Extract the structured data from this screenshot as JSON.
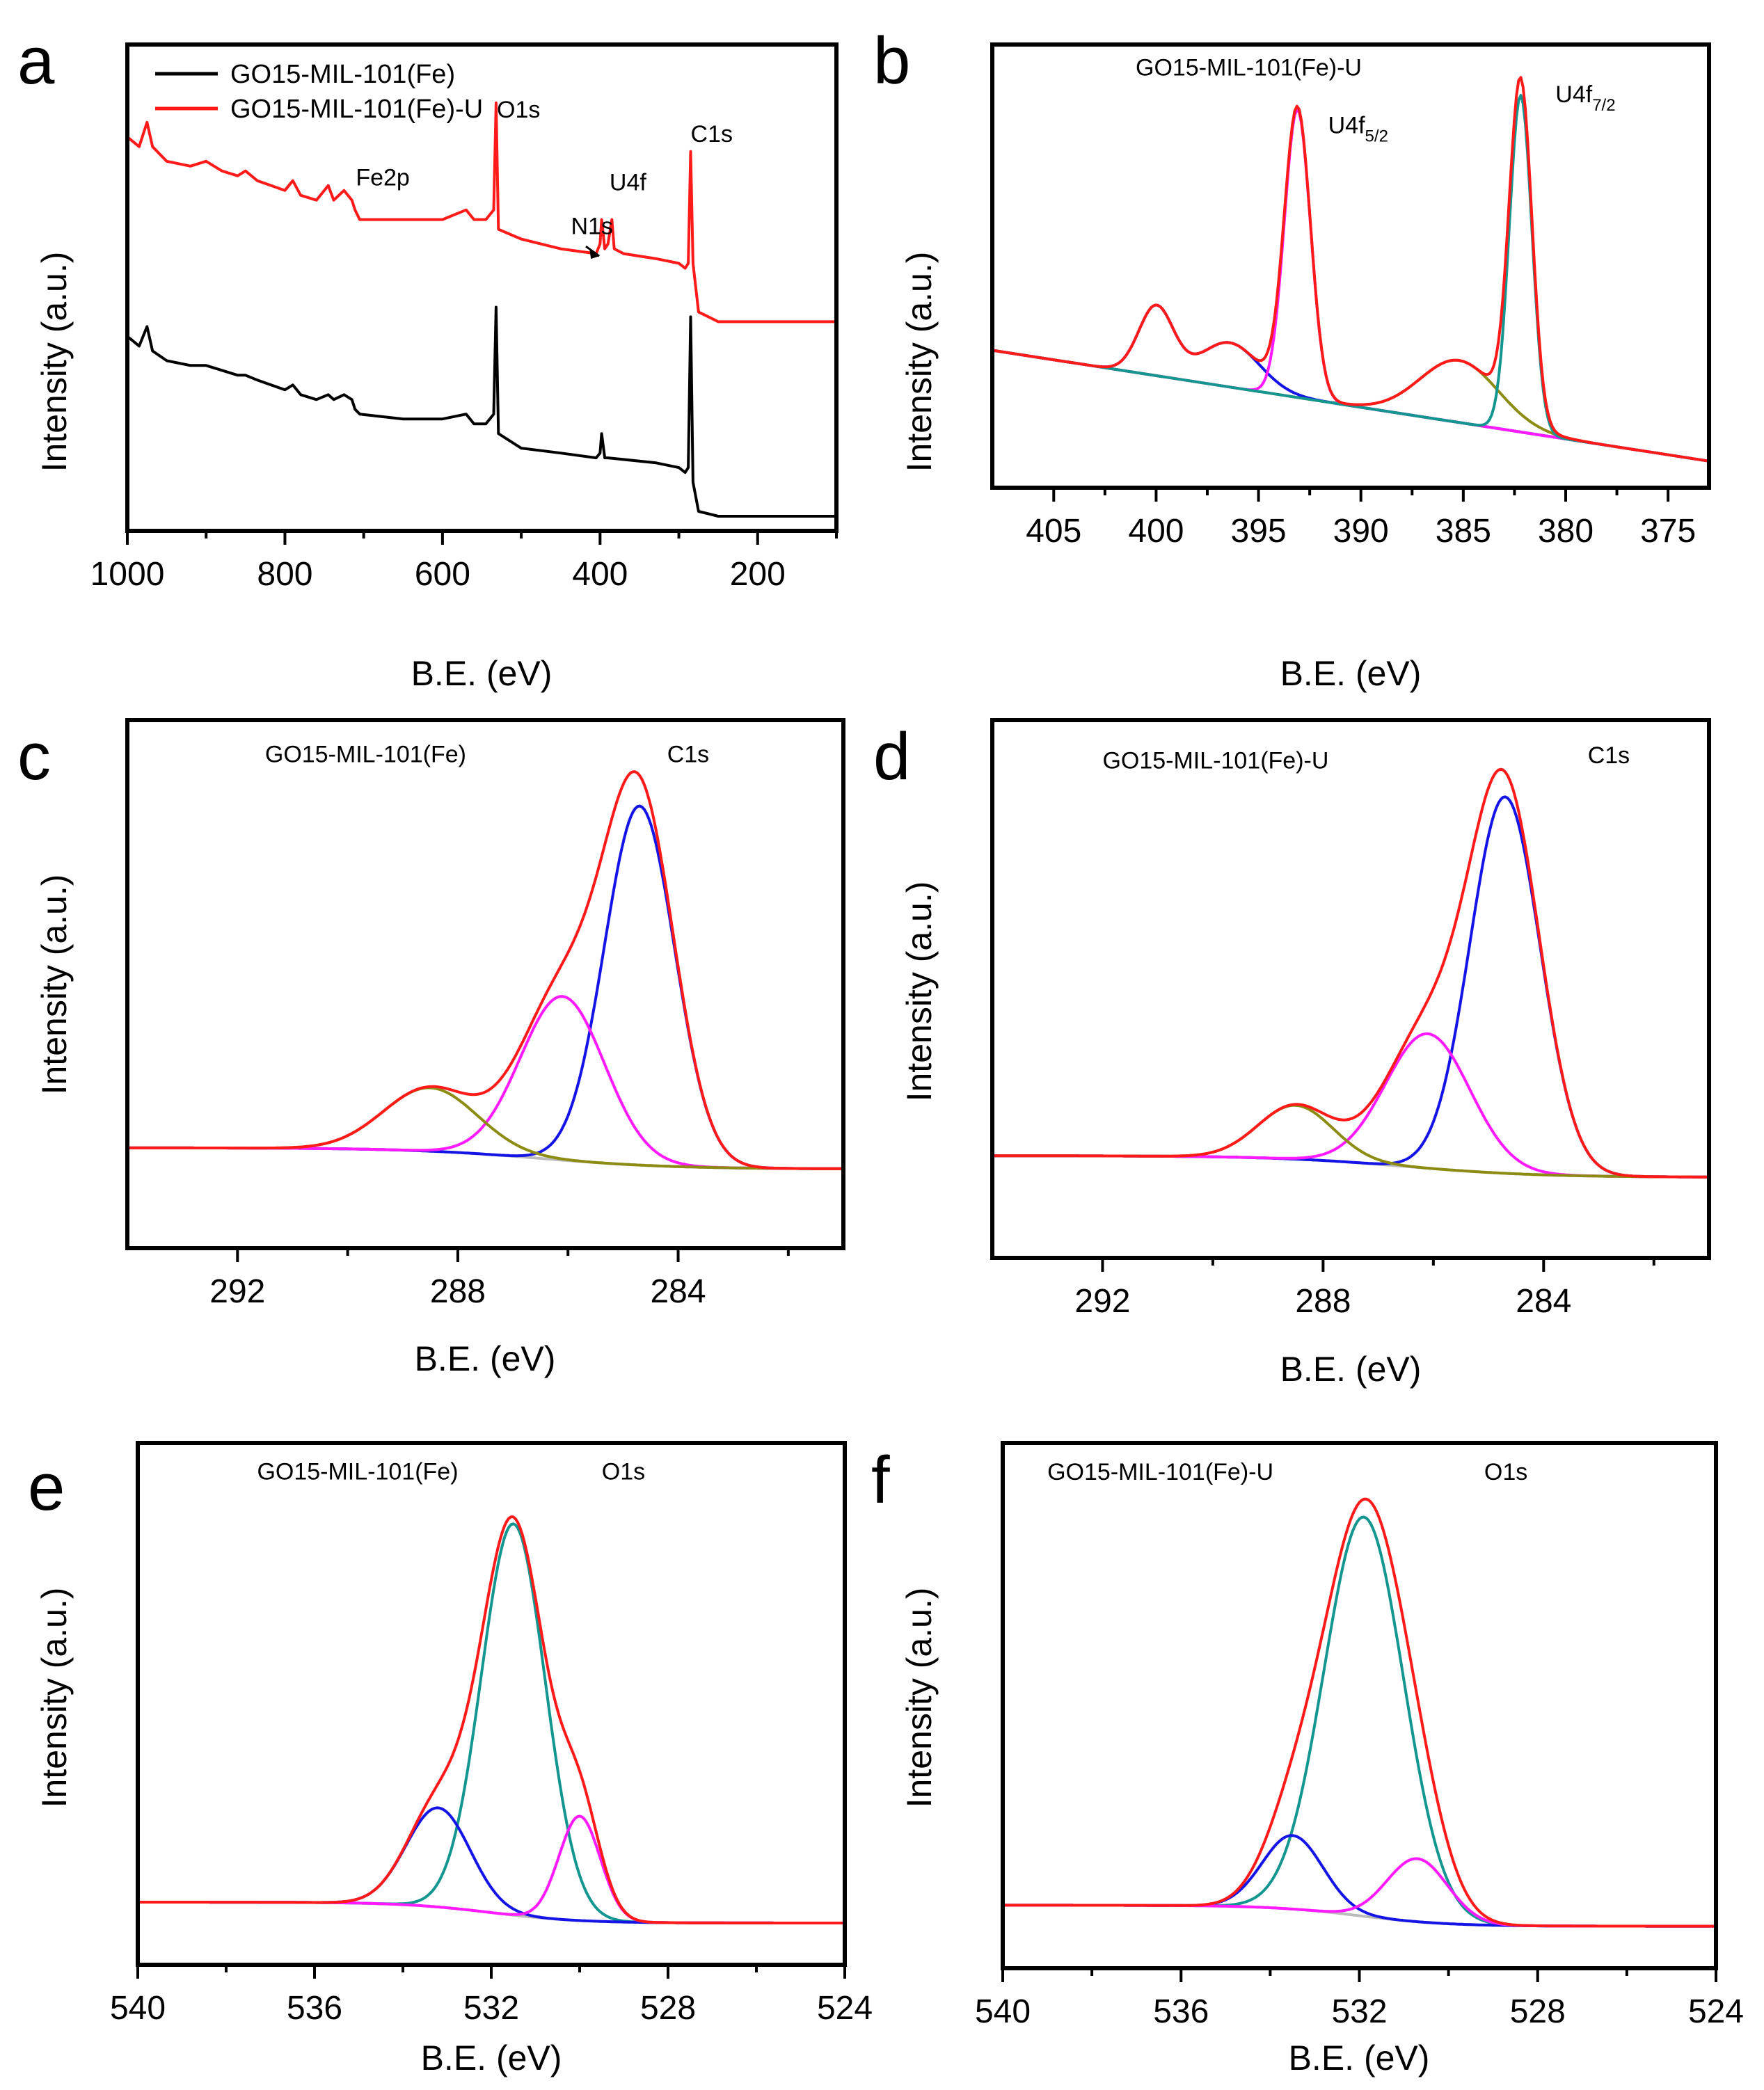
{
  "figure": {
    "background": "#ffffff"
  },
  "colors": {
    "black": "#000000",
    "red": "#ff1a1a",
    "blue": "#1414e6",
    "magenta": "#ff1aff",
    "teal": "#149690",
    "olive": "#8c8c14",
    "gray": "#bbbbbb"
  },
  "chart_data": [
    {
      "id": "a",
      "type": "line",
      "panel_label": "a",
      "xlabel": "B.E. (eV)",
      "ylabel": "Intensity (a.u.)",
      "xlim": [
        1000,
        100
      ],
      "ylim": [
        0,
        100
      ],
      "xticks": [
        1000,
        800,
        600,
        400,
        200
      ],
      "xtick_labels": [
        "1000",
        "800",
        "600",
        "400",
        "200"
      ],
      "minor_xticks": [
        900,
        700,
        500,
        300,
        100
      ],
      "legend": {
        "position": "top-left",
        "entries": [
          {
            "label": "GO15-MIL-101(Fe)",
            "color": "black"
          },
          {
            "label": "GO15-MIL-101(Fe)-U",
            "color": "red"
          }
        ]
      },
      "annotations": [
        {
          "text": "Fe2p",
          "x": 710,
          "y": 71
        },
        {
          "text": "O1s",
          "x": 531,
          "y": 85
        },
        {
          "text": "U4f",
          "x": 388,
          "y": 70
        },
        {
          "text": "N1s",
          "x": 437,
          "y": 61
        },
        {
          "text": "C1s",
          "x": 285,
          "y": 80
        }
      ],
      "series": [
        {
          "name": "GO15-MIL-101(Fe)-U",
          "color": "red",
          "width": 5,
          "points": [
            [
              1000,
              81
            ],
            [
              985,
              79
            ],
            [
              975,
              84
            ],
            [
              968,
              79
            ],
            [
              950,
              76
            ],
            [
              920,
              75
            ],
            [
              900,
              76
            ],
            [
              880,
              74
            ],
            [
              860,
              73
            ],
            [
              850,
              74
            ],
            [
              835,
              72
            ],
            [
              800,
              70
            ],
            [
              790,
              72
            ],
            [
              780,
              69
            ],
            [
              760,
              68
            ],
            [
              745,
              71
            ],
            [
              738,
              68
            ],
            [
              725,
              70
            ],
            [
              715,
              68
            ],
            [
              711,
              66
            ],
            [
              705,
              64
            ],
            [
              650,
              64
            ],
            [
              600,
              64
            ],
            [
              570,
              66
            ],
            [
              560,
              64
            ],
            [
              545,
              64
            ],
            [
              535,
              66
            ],
            [
              532,
              88
            ],
            [
              529,
              62
            ],
            [
              500,
              60
            ],
            [
              450,
              58
            ],
            [
              405,
              57
            ],
            [
              400,
              59
            ],
            [
              398,
              64
            ],
            [
              394,
              58
            ],
            [
              390,
              59
            ],
            [
              385,
              64
            ],
            [
              382,
              58
            ],
            [
              370,
              57
            ],
            [
              330,
              56
            ],
            [
              300,
              55
            ],
            [
              292,
              54
            ],
            [
              288,
              55
            ],
            [
              285,
              78
            ],
            [
              282,
              55
            ],
            [
              275,
              45
            ],
            [
              250,
              43
            ],
            [
              200,
              43
            ],
            [
              150,
              43
            ],
            [
              100,
              43
            ]
          ]
        },
        {
          "name": "GO15-MIL-101(Fe)",
          "color": "black",
          "width": 5,
          "points": [
            [
              1000,
              40
            ],
            [
              985,
              38
            ],
            [
              975,
              42
            ],
            [
              968,
              37
            ],
            [
              950,
              35
            ],
            [
              920,
              34
            ],
            [
              900,
              34
            ],
            [
              880,
              33
            ],
            [
              860,
              32
            ],
            [
              850,
              32
            ],
            [
              835,
              31
            ],
            [
              800,
              29
            ],
            [
              790,
              30
            ],
            [
              780,
              28
            ],
            [
              760,
              27
            ],
            [
              745,
              28
            ],
            [
              738,
              27
            ],
            [
              725,
              28
            ],
            [
              715,
              27
            ],
            [
              711,
              25
            ],
            [
              705,
              24
            ],
            [
              650,
              23
            ],
            [
              600,
              23
            ],
            [
              570,
              24
            ],
            [
              560,
              22
            ],
            [
              545,
              22
            ],
            [
              535,
              24
            ],
            [
              532,
              46
            ],
            [
              529,
              20
            ],
            [
              500,
              17
            ],
            [
              450,
              16
            ],
            [
              405,
              15
            ],
            [
              400,
              16
            ],
            [
              398,
              20
            ],
            [
              394,
              15
            ],
            [
              390,
              15
            ],
            [
              330,
              14
            ],
            [
              300,
              13
            ],
            [
              292,
              12
            ],
            [
              288,
              13
            ],
            [
              285,
              44
            ],
            [
              282,
              10
            ],
            [
              275,
              4
            ],
            [
              250,
              3
            ],
            [
              200,
              3
            ],
            [
              150,
              3
            ],
            [
              100,
              3
            ]
          ]
        }
      ]
    },
    {
      "id": "b",
      "type": "line",
      "panel_label": "b",
      "xlabel": "B.E. (eV)",
      "ylabel": "Intensity (a.u.)",
      "xlim": [
        408,
        373
      ],
      "ylim": [
        0,
        100
      ],
      "xticks": [
        405,
        400,
        395,
        390,
        385,
        380,
        375
      ],
      "xtick_labels": [
        "405",
        "400",
        "395",
        "390",
        "385",
        "380",
        "375"
      ],
      "minor_xticks": [
        402.5,
        397.5,
        392.5,
        387.5,
        382.5,
        377.5
      ],
      "annotations": [
        {
          "text": "GO15-MIL-101(Fe)-U",
          "x": 401,
          "y": 93
        },
        {
          "text": "U4f5/2",
          "main": "U4f",
          "sub": "5/2",
          "x": 391.6,
          "y": 80
        },
        {
          "text": "U4f7/2",
          "main": "U4f",
          "sub": "7/2",
          "x": 380.5,
          "y": 87
        }
      ],
      "baseline": {
        "type": "linear",
        "x": [
          408,
          373
        ],
        "y": [
          31,
          6
        ]
      },
      "components": [
        {
          "color": "gray",
          "width": 4,
          "shirley": true,
          "peaks": []
        },
        {
          "color": "olive",
          "width": 4,
          "peaks": [
            {
              "center": 385.2,
              "height": 14,
              "fwhm": 4.5
            }
          ]
        },
        {
          "color": "blue",
          "width": 4,
          "peaks": [
            {
              "center": 400.0,
              "height": 15.5,
              "fwhm": 2.0
            },
            {
              "center": 396.4,
              "height": 10,
              "fwhm": 3.4
            }
          ]
        },
        {
          "color": "magenta",
          "width": 4,
          "peaks": [
            {
              "center": 393.1,
              "height": 65,
              "fwhm": 1.5
            }
          ]
        },
        {
          "color": "teal",
          "width": 4,
          "peaks": [
            {
              "center": 382.2,
              "height": 76,
              "fwhm": 1.3
            }
          ]
        },
        {
          "color": "red",
          "width": 6,
          "total": true,
          "peaks": []
        }
      ]
    },
    {
      "id": "c",
      "type": "line",
      "panel_label": "c",
      "xlabel": "B.E. (eV)",
      "ylabel": "Intensity (a.u.)",
      "xlim": [
        294,
        281
      ],
      "ylim": [
        0,
        100
      ],
      "xticks": [
        292,
        288,
        284
      ],
      "xtick_labels": [
        "292",
        "288",
        "284"
      ],
      "minor_xticks": [
        290,
        286,
        282
      ],
      "annotations": [
        {
          "text": "GO15-MIL-101(Fe)",
          "x": 291.5,
          "y": 92
        },
        {
          "text": "C1s",
          "x": 284.2,
          "y": 92
        }
      ],
      "baseline": {
        "type": "step",
        "low": 15,
        "high": 19,
        "center": 286.5,
        "width": 1.2
      },
      "components": [
        {
          "color": "gray",
          "width": 4,
          "shirley": true,
          "peaks": []
        },
        {
          "color": "blue",
          "width": 4,
          "peaks": [
            {
              "center": 284.7,
              "height": 68,
              "fwhm": 1.5
            }
          ]
        },
        {
          "color": "magenta",
          "width": 4,
          "peaks": [
            {
              "center": 286.1,
              "height": 31,
              "fwhm": 1.8
            }
          ]
        },
        {
          "color": "olive",
          "width": 4,
          "peaks": [
            {
              "center": 288.5,
              "height": 12,
              "fwhm": 2.0
            }
          ]
        },
        {
          "color": "red",
          "width": 6,
          "total": true,
          "peaks": []
        }
      ]
    },
    {
      "id": "d",
      "type": "line",
      "panel_label": "d",
      "xlabel": "B.E. (eV)",
      "ylabel": "Intensity (a.u.)",
      "xlim": [
        294,
        281
      ],
      "ylim": [
        0,
        100
      ],
      "xticks": [
        292,
        288,
        284
      ],
      "xtick_labels": [
        "292",
        "288",
        "284"
      ],
      "minor_xticks": [
        290,
        286,
        282
      ],
      "annotations": [
        {
          "text": "GO15-MIL-101(Fe)-U",
          "x": 292,
          "y": 91
        },
        {
          "text": "C1s",
          "x": 283.2,
          "y": 92
        }
      ],
      "baseline": {
        "type": "step",
        "low": 15,
        "high": 19,
        "center": 286.5,
        "width": 1.2
      },
      "components": [
        {
          "color": "gray",
          "width": 4,
          "shirley": true,
          "peaks": []
        },
        {
          "color": "blue",
          "width": 4,
          "peaks": [
            {
              "center": 284.7,
              "height": 70,
              "fwhm": 1.5
            }
          ]
        },
        {
          "color": "magenta",
          "width": 4,
          "peaks": [
            {
              "center": 286.1,
              "height": 25,
              "fwhm": 1.8
            }
          ]
        },
        {
          "color": "olive",
          "width": 4,
          "peaks": [
            {
              "center": 288.5,
              "height": 10,
              "fwhm": 1.6
            }
          ]
        },
        {
          "color": "red",
          "width": 6,
          "total": true,
          "peaks": []
        }
      ]
    },
    {
      "id": "e",
      "type": "line",
      "panel_label": "e",
      "xlabel": "B.E. (eV)",
      "ylabel": "Intensity (a.u.)",
      "xlim": [
        540,
        524
      ],
      "ylim": [
        0,
        100
      ],
      "xticks": [
        540,
        536,
        532,
        528,
        524
      ],
      "xtick_labels": [
        "540",
        "536",
        "532",
        "528",
        "524"
      ],
      "minor_xticks": [
        538,
        534,
        530,
        526
      ],
      "annotations": [
        {
          "text": "GO15-MIL-101(Fe)",
          "x": 537.3,
          "y": 93
        },
        {
          "text": "O1s",
          "x": 529.5,
          "y": 93
        }
      ],
      "baseline": {
        "type": "step",
        "low": 8,
        "high": 12,
        "center": 532.0,
        "width": 1.0
      },
      "components": [
        {
          "color": "gray",
          "width": 4,
          "shirley": true,
          "peaks": []
        },
        {
          "color": "teal",
          "width": 4,
          "peaks": [
            {
              "center": 531.5,
              "height": 75,
              "fwhm": 1.7
            }
          ]
        },
        {
          "color": "blue",
          "width": 4,
          "peaks": [
            {
              "center": 533.2,
              "height": 19,
              "fwhm": 1.7
            }
          ]
        },
        {
          "color": "magenta",
          "width": 4,
          "peaks": [
            {
              "center": 530.0,
              "height": 20,
              "fwhm": 1.1
            }
          ]
        },
        {
          "color": "red",
          "width": 6,
          "total": true,
          "peaks": []
        }
      ]
    },
    {
      "id": "f",
      "type": "line",
      "panel_label": "f",
      "xlabel": "B.E. (eV)",
      "ylabel": "Intensity (a.u.)",
      "xlim": [
        540,
        524
      ],
      "ylim": [
        0,
        100
      ],
      "xticks": [
        540,
        536,
        532,
        528,
        524
      ],
      "xtick_labels": [
        "540",
        "536",
        "532",
        "528",
        "524"
      ],
      "minor_xticks": [
        538,
        534,
        530,
        526
      ],
      "annotations": [
        {
          "text": "GO15-MIL-101(Fe)-U",
          "x": 539,
          "y": 93
        },
        {
          "text": "O1s",
          "x": 529.2,
          "y": 93
        }
      ],
      "baseline": {
        "type": "step",
        "low": 8,
        "high": 12,
        "center": 532.0,
        "width": 1.0
      },
      "components": [
        {
          "color": "gray",
          "width": 4,
          "shirley": true,
          "peaks": []
        },
        {
          "color": "teal",
          "width": 4,
          "peaks": [
            {
              "center": 531.9,
              "height": 76,
              "fwhm": 2.1
            }
          ]
        },
        {
          "color": "blue",
          "width": 4,
          "peaks": [
            {
              "center": 533.5,
              "height": 14,
              "fwhm": 1.6
            }
          ]
        },
        {
          "color": "magenta",
          "width": 4,
          "peaks": [
            {
              "center": 530.7,
              "height": 12,
              "fwhm": 1.6
            }
          ]
        },
        {
          "color": "red",
          "width": 6,
          "total": true,
          "peaks": []
        }
      ]
    }
  ]
}
